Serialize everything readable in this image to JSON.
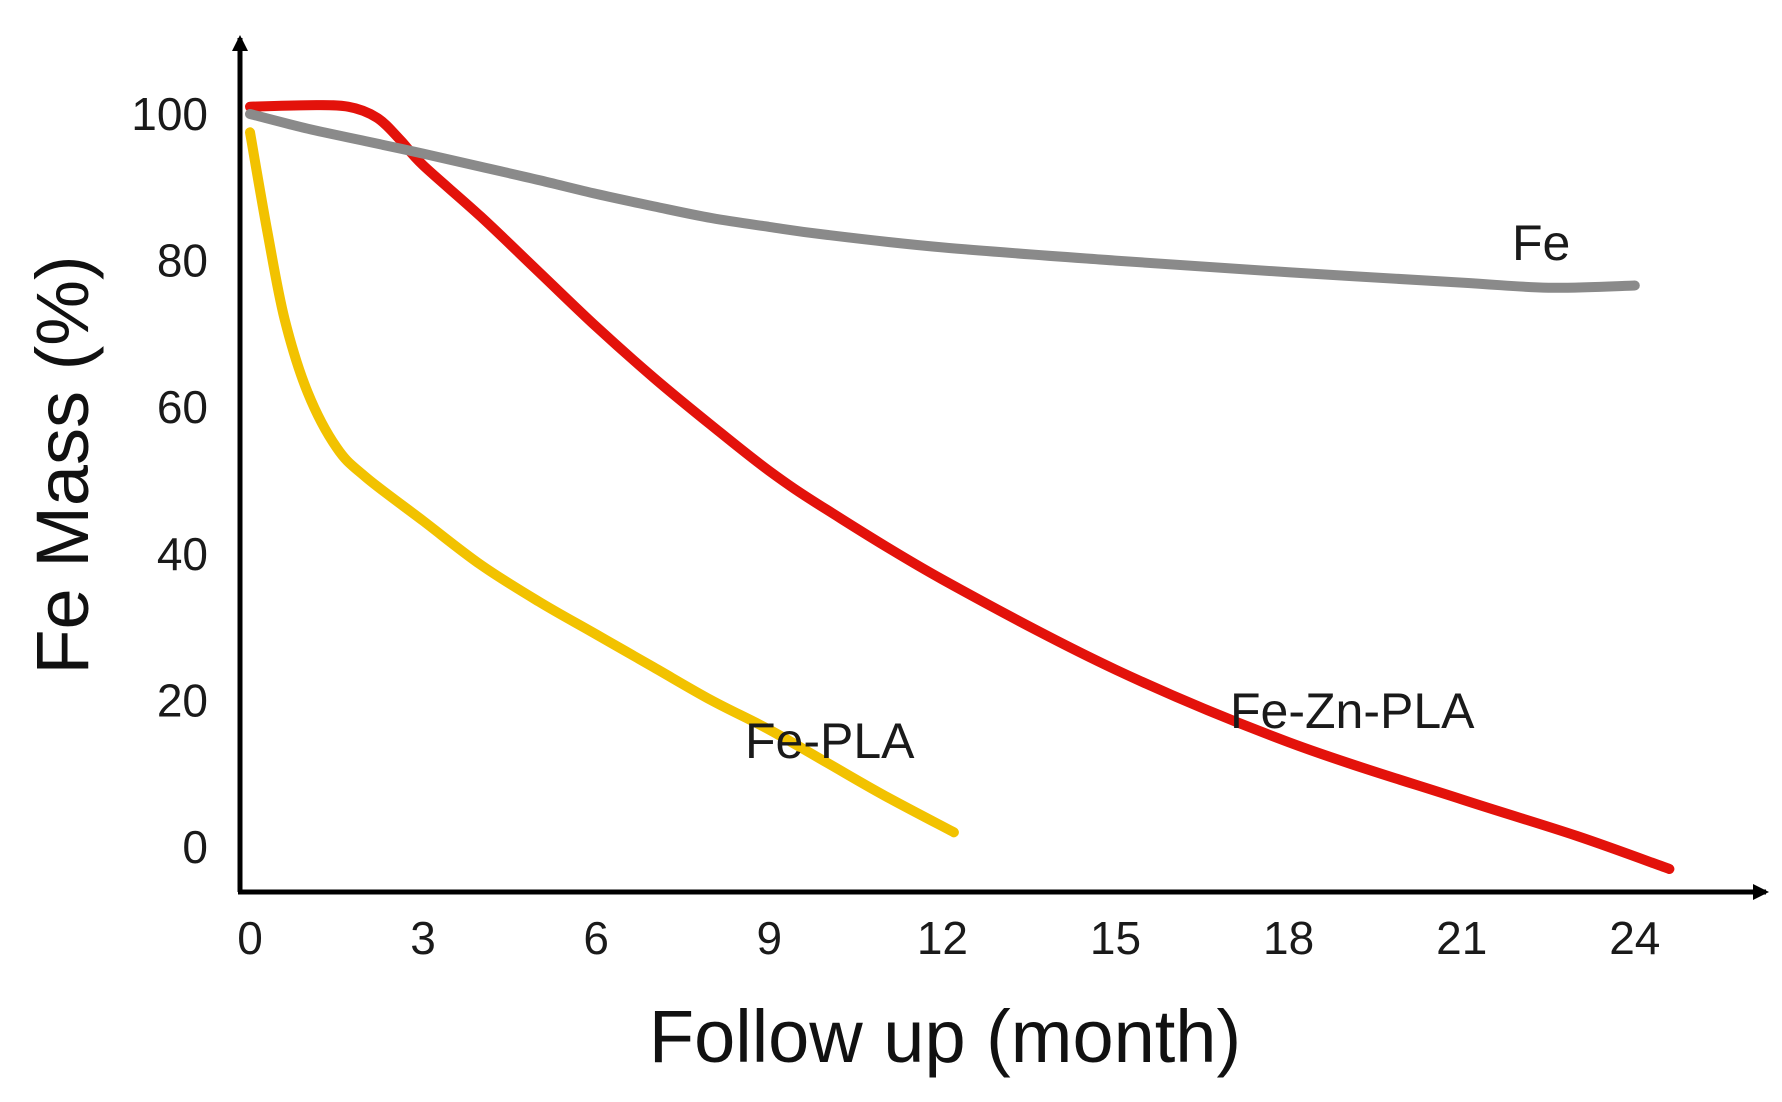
{
  "chart_data": {
    "type": "line",
    "title": "",
    "xlabel": "Follow up (month)",
    "ylabel": "Fe Mass (%)",
    "xlim": [
      0,
      27
    ],
    "ylim": [
      -5,
      110
    ],
    "x_ticks": [
      "0",
      "3",
      "6",
      "9",
      "12",
      "15",
      "18",
      "21",
      "24"
    ],
    "y_ticks": [
      "0",
      "20",
      "40",
      "60",
      "80",
      "100"
    ],
    "grid": false,
    "legend": "inline labels",
    "series": [
      {
        "name": "Fe",
        "color": "#8a8a8a",
        "label": "Fe",
        "points": [
          [
            0,
            100
          ],
          [
            1,
            98
          ],
          [
            2,
            96.3
          ],
          [
            3,
            94.6
          ],
          [
            4,
            92.8
          ],
          [
            5,
            91
          ],
          [
            6,
            89.1
          ],
          [
            7,
            87.4
          ],
          [
            8,
            85.8
          ],
          [
            9,
            84.6
          ],
          [
            10,
            83.5
          ],
          [
            12,
            81.8
          ],
          [
            15,
            80
          ],
          [
            18,
            78.4
          ],
          [
            21,
            77
          ],
          [
            22.5,
            76.3
          ],
          [
            24,
            76.6
          ]
        ]
      },
      {
        "name": "Fe-Zn-PLA",
        "color": "#e3120b",
        "label": "Fe-Zn-PLA",
        "points": [
          [
            0,
            101
          ],
          [
            1,
            101.2
          ],
          [
            1.7,
            101
          ],
          [
            2.2,
            99.5
          ],
          [
            2.6,
            96.5
          ],
          [
            3,
            93
          ],
          [
            4,
            86
          ],
          [
            5,
            78.5
          ],
          [
            6,
            71
          ],
          [
            7,
            64
          ],
          [
            8,
            57.5
          ],
          [
            9,
            51.3
          ],
          [
            10,
            46
          ],
          [
            12,
            36.5
          ],
          [
            15,
            24.2
          ],
          [
            18,
            14.3
          ],
          [
            21,
            6.5
          ],
          [
            23,
            1.5
          ],
          [
            24.6,
            -3
          ]
        ]
      },
      {
        "name": "Fe-PLA",
        "color": "#f2c200",
        "label": "Fe-PLA",
        "points": [
          [
            0,
            97.5
          ],
          [
            0.3,
            84
          ],
          [
            0.6,
            72
          ],
          [
            1,
            62
          ],
          [
            1.5,
            54.5
          ],
          [
            2,
            50.5
          ],
          [
            3,
            44.5
          ],
          [
            4,
            38.5
          ],
          [
            5,
            33.5
          ],
          [
            6,
            29
          ],
          [
            7,
            24.5
          ],
          [
            8,
            20
          ],
          [
            9,
            16
          ],
          [
            10,
            11.5
          ],
          [
            11,
            7
          ],
          [
            12.2,
            2
          ]
        ]
      }
    ]
  }
}
